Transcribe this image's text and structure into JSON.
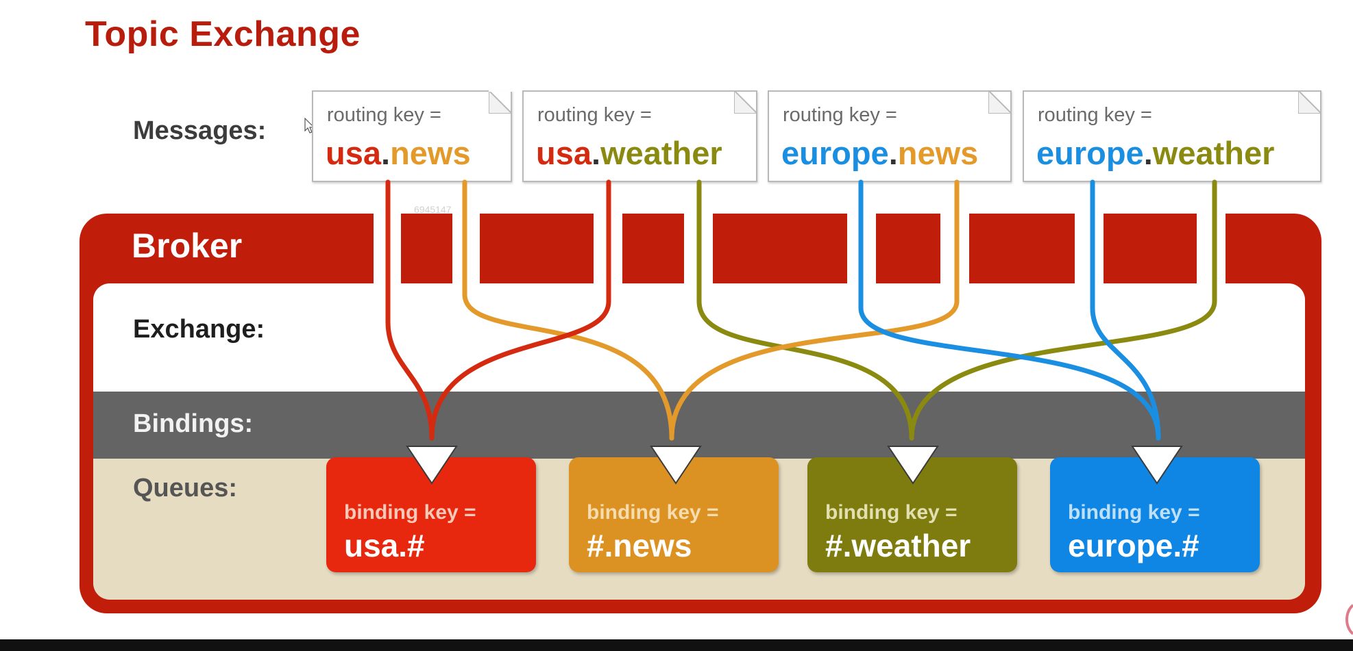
{
  "title": "Topic Exchange",
  "labels": {
    "messages": "Messages:",
    "broker": "Broker",
    "exchange": "Exchange:",
    "bindings": "Bindings:",
    "queues": "Queues:"
  },
  "messages": [
    {
      "routing_label": "routing key =",
      "part1": "usa",
      "dot": ".",
      "part2": "news"
    },
    {
      "routing_label": "routing key =",
      "part1": "usa",
      "dot": ".",
      "part2": "weather"
    },
    {
      "routing_label": "routing key =",
      "part1": "europe",
      "dot": ".",
      "part2": "news"
    },
    {
      "routing_label": "routing key =",
      "part1": "europe",
      "dot": ".",
      "part2": "weather"
    }
  ],
  "queues": [
    {
      "binding_label": "binding key =",
      "key": "usa.#"
    },
    {
      "binding_label": "binding key =",
      "key": "#.news"
    },
    {
      "binding_label": "binding key =",
      "key": "#.weather"
    },
    {
      "binding_label": "binding key =",
      "key": "europe.#"
    }
  ],
  "watermark": "6945147",
  "colors": {
    "usa": "#d42a10",
    "news": "#e39a2a",
    "weather": "#8a8a10",
    "europe": "#1a8ee0",
    "broker": "#c01d0a",
    "title": "#b71c0c"
  }
}
